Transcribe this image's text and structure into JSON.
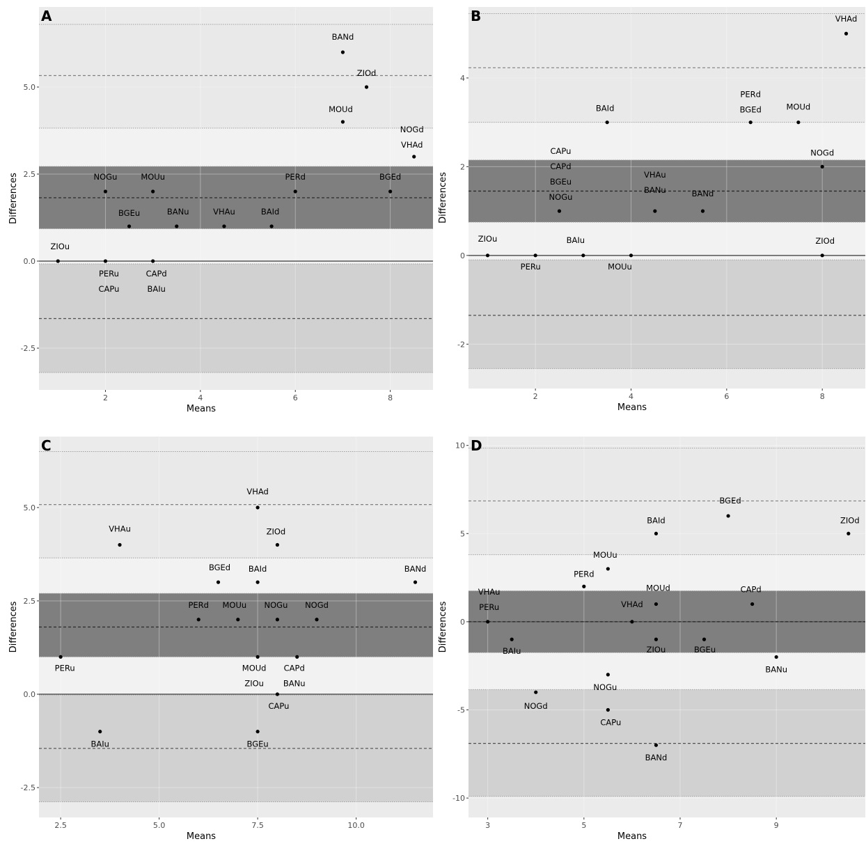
{
  "chart_data": [
    {
      "type": "scatter",
      "panel": "A",
      "xlabel": "Means",
      "ylabel": "Differences",
      "xlim": [
        0.6,
        8.9
      ],
      "ylim": [
        -3.7,
        7.3
      ],
      "xticks": [
        2,
        4,
        6,
        8
      ],
      "xtick_labels": [
        "2",
        "4",
        "6",
        "8"
      ],
      "yticks": [
        -2.5,
        0,
        2.5,
        5
      ],
      "ytick_labels": [
        "-2.5",
        "0.0",
        "2.5",
        "5.0"
      ],
      "lines": {
        "mean_ci": [
          0.93,
          2.72
        ],
        "mean": 1.82,
        "upper_ci": [
          3.82,
          6.8
        ],
        "upper": 5.33,
        "lower_ci": [
          -3.2,
          -0.08
        ],
        "lower": -1.65
      },
      "points": [
        {
          "x": 7.0,
          "y": 6.0,
          "labels": [
            "BANd"
          ]
        },
        {
          "x": 7.5,
          "y": 5.0,
          "labels": [
            "ZIOd"
          ]
        },
        {
          "x": 7.0,
          "y": 4.0,
          "labels": [
            "MOUd"
          ]
        },
        {
          "x": 8.5,
          "y": 3.0,
          "labels": [
            "NOGd",
            "VHAd"
          ]
        },
        {
          "x": 2.0,
          "y": 2.0,
          "labels": [
            "NOGu"
          ]
        },
        {
          "x": 3.0,
          "y": 2.0,
          "labels": [
            "MOUu"
          ]
        },
        {
          "x": 6.0,
          "y": 2.0,
          "labels": [
            "PERd"
          ]
        },
        {
          "x": 8.0,
          "y": 2.0,
          "labels": [
            "BGEd"
          ]
        },
        {
          "x": 2.5,
          "y": 1.0,
          "labels": [
            "BGEu"
          ]
        },
        {
          "x": 3.5,
          "y": 1.0,
          "labels": [
            "BANu"
          ]
        },
        {
          "x": 4.5,
          "y": 1.0,
          "labels": [
            "VHAu"
          ]
        },
        {
          "x": 5.5,
          "y": 1.0,
          "labels": [
            "BAId"
          ]
        },
        {
          "x": 1.0,
          "y": 0.0,
          "labels": [
            "ZIOu"
          ]
        },
        {
          "x": 2.0,
          "y": 0.0,
          "labels": [
            "PERu",
            "CAPu"
          ]
        },
        {
          "x": 3.0,
          "y": 0.0,
          "labels": [
            "CAPd",
            "BAIu"
          ]
        }
      ]
    },
    {
      "type": "scatter",
      "panel": "B",
      "xlabel": "Means",
      "ylabel": "Differences",
      "xlim": [
        0.6,
        8.9
      ],
      "ylim": [
        -3.0,
        5.6
      ],
      "xticks": [
        2,
        4,
        6,
        8
      ],
      "xtick_labels": [
        "2",
        "4",
        "6",
        "8"
      ],
      "yticks": [
        -2,
        0,
        2,
        4
      ],
      "ytick_labels": [
        "-2",
        "0",
        "2",
        "4"
      ],
      "lines": {
        "mean_ci": [
          0.75,
          2.15
        ],
        "mean": 1.45,
        "upper_ci": [
          3.0,
          5.45
        ],
        "upper": 4.23,
        "lower_ci": [
          -2.55,
          -0.1
        ],
        "lower": -1.35
      },
      "points": [
        {
          "x": 8.5,
          "y": 5.0,
          "labels": [
            "VHAd"
          ]
        },
        {
          "x": 3.5,
          "y": 3.0,
          "labels": [
            "BAId"
          ]
        },
        {
          "x": 6.5,
          "y": 3.0,
          "labels": [
            "PERd",
            "BGEd"
          ]
        },
        {
          "x": 7.5,
          "y": 3.0,
          "labels": [
            "MOUd"
          ]
        },
        {
          "x": 8.0,
          "y": 2.0,
          "labels": [
            "NOGd"
          ]
        },
        {
          "x": 2.5,
          "y": 1.0,
          "labels": [
            "CAPu",
            "CAPd",
            "BGEu",
            "NOGu"
          ]
        },
        {
          "x": 4.5,
          "y": 1.0,
          "labels": [
            "VHAu",
            "BANu"
          ]
        },
        {
          "x": 5.5,
          "y": 1.0,
          "labels": [
            "BANd"
          ]
        },
        {
          "x": 1.0,
          "y": 0.0,
          "labels": [
            "ZIOu"
          ]
        },
        {
          "x": 2.0,
          "y": 0.0,
          "labels": [
            "PERu"
          ]
        },
        {
          "x": 3.0,
          "y": 0.0,
          "labels": [
            "BAIu"
          ]
        },
        {
          "x": 4.0,
          "y": 0.0,
          "labels": [
            "MOUu"
          ]
        },
        {
          "x": 8.0,
          "y": 0.0,
          "labels": [
            "ZIOd"
          ]
        }
      ]
    },
    {
      "type": "scatter",
      "panel": "C",
      "xlabel": "Means",
      "ylabel": "Differences",
      "xlim": [
        1.95,
        11.95
      ],
      "ylim": [
        -3.3,
        6.9
      ],
      "xticks": [
        2.5,
        5,
        7.5,
        10
      ],
      "xtick_labels": [
        "2.5",
        "5.0",
        "7.5",
        "10.0"
      ],
      "yticks": [
        -2.5,
        0,
        2.5,
        5
      ],
      "ytick_labels": [
        "-2.5",
        "0.0",
        "2.5",
        "5.0"
      ],
      "lines": {
        "mean_ci": [
          1.0,
          2.7
        ],
        "mean": 1.8,
        "upper_ci": [
          3.65,
          6.5
        ],
        "upper": 5.08,
        "lower_ci": [
          -2.88,
          -0.02
        ],
        "lower": -1.45
      },
      "points": [
        {
          "x": 7.5,
          "y": 5.0,
          "labels": [
            "VHAd"
          ]
        },
        {
          "x": 4.0,
          "y": 4.0,
          "labels": [
            "VHAu"
          ]
        },
        {
          "x": 8.0,
          "y": 4.0,
          "labels": [
            "ZIOd"
          ]
        },
        {
          "x": 6.5,
          "y": 3.0,
          "labels": [
            "BGEd"
          ]
        },
        {
          "x": 7.5,
          "y": 3.0,
          "labels": [
            "BAId"
          ]
        },
        {
          "x": 11.5,
          "y": 3.0,
          "labels": [
            "BANd"
          ]
        },
        {
          "x": 6.0,
          "y": 2.0,
          "labels": [
            "PERd"
          ]
        },
        {
          "x": 7.0,
          "y": 2.0,
          "labels": [
            "MOUu"
          ]
        },
        {
          "x": 8.0,
          "y": 2.0,
          "labels": [
            "NOGu"
          ]
        },
        {
          "x": 9.0,
          "y": 2.0,
          "labels": [
            "NOGd"
          ]
        },
        {
          "x": 2.5,
          "y": 1.0,
          "labels": [
            "PERu"
          ]
        },
        {
          "x": 7.5,
          "y": 1.0,
          "labels": [
            "MOUd",
            "ZIOu"
          ]
        },
        {
          "x": 8.5,
          "y": 1.0,
          "labels": [
            "CAPd",
            "BANu"
          ]
        },
        {
          "x": 8.0,
          "y": 0.0,
          "labels": [
            "CAPu"
          ]
        },
        {
          "x": 3.5,
          "y": -1.0,
          "labels": [
            "BAIu"
          ]
        },
        {
          "x": 7.5,
          "y": -1.0,
          "labels": [
            "BGEu"
          ]
        }
      ]
    },
    {
      "type": "scatter",
      "panel": "D",
      "xlabel": "Means",
      "ylabel": "Differences",
      "xlim": [
        2.6,
        10.85
      ],
      "ylim": [
        -11.1,
        10.5
      ],
      "xticks": [
        3,
        5,
        7,
        9
      ],
      "xtick_labels": [
        "3",
        "5",
        "7",
        "9"
      ],
      "yticks": [
        -10,
        -5,
        0,
        5,
        10
      ],
      "ytick_labels": [
        "-10",
        "-5",
        "0",
        "5",
        "10"
      ],
      "lines": {
        "mean_ci": [
          -1.75,
          1.75
        ],
        "mean": 0.0,
        "upper_ci": [
          3.8,
          9.85
        ],
        "upper": 6.85,
        "lower_ci": [
          -9.9,
          -3.85
        ],
        "lower": -6.9
      },
      "points": [
        {
          "x": 8.0,
          "y": 6.0,
          "labels": [
            "BGEd"
          ]
        },
        {
          "x": 6.5,
          "y": 5.0,
          "labels": [
            "BAId"
          ]
        },
        {
          "x": 10.5,
          "y": 5.0,
          "labels": [
            "ZIOd"
          ]
        },
        {
          "x": 5.5,
          "y": 3.0,
          "labels": [
            "MOUu"
          ]
        },
        {
          "x": 5.0,
          "y": 2.0,
          "labels": [
            "PERd"
          ]
        },
        {
          "x": 6.5,
          "y": 1.0,
          "labels": [
            "MOUd"
          ]
        },
        {
          "x": 8.5,
          "y": 1.0,
          "labels": [
            "CAPd"
          ]
        },
        {
          "x": 3.0,
          "y": 0.0,
          "labels": [
            "VHAu",
            "PERu"
          ]
        },
        {
          "x": 6.0,
          "y": 0.0,
          "labels": [
            "VHAd"
          ]
        },
        {
          "x": 3.5,
          "y": -1.0,
          "labels": [
            "BAIu"
          ]
        },
        {
          "x": 6.5,
          "y": -1.0,
          "labels": [
            "ZIOu"
          ]
        },
        {
          "x": 7.5,
          "y": -1.0,
          "labels": [
            "BGEu"
          ]
        },
        {
          "x": 9.0,
          "y": -2.0,
          "labels": [
            "BANu"
          ]
        },
        {
          "x": 5.5,
          "y": -3.0,
          "labels": [
            "NOGu"
          ]
        },
        {
          "x": 4.0,
          "y": -4.0,
          "labels": [
            "NOGd"
          ]
        },
        {
          "x": 5.5,
          "y": -5.0,
          "labels": [
            "CAPu"
          ]
        },
        {
          "x": 6.5,
          "y": -7.0,
          "labels": [
            "BANd"
          ]
        }
      ]
    }
  ],
  "colors": {
    "panel_bg": "#ebebeb",
    "upper_band": "#e9e9e9",
    "mean_band": "#7f7f7f",
    "lower_band": "#d1d1d1",
    "gap_band": "#f2f2f2",
    "point": "#000000",
    "zero_line": "#555555"
  }
}
